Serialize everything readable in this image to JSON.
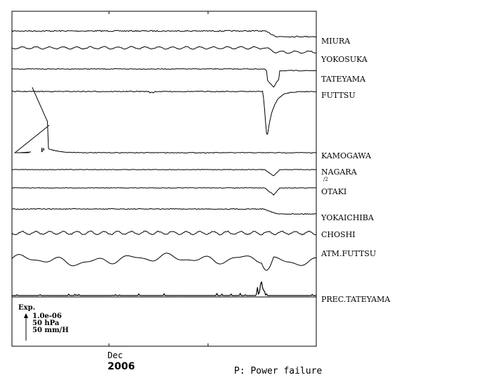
{
  "chart_data": {
    "type": "line",
    "title": "",
    "xlabel": "",
    "ylabel": "",
    "x_tick_labels": [
      {
        "month": "Dec",
        "year": "2006"
      }
    ],
    "series": [
      {
        "name": "MIURA",
        "kind": "drift",
        "step_at": 0.83,
        "step": 8,
        "jitter": 0.8
      },
      {
        "name": "YOKOSUKA",
        "kind": "wavy",
        "step_at": 0.83,
        "step": 6,
        "jitter": 1.6
      },
      {
        "name": "TATEYAMA",
        "kind": "dip",
        "step_at": 0.83,
        "dip": 14,
        "step": 12,
        "jitter": 0.5
      },
      {
        "name": "FUTTSU",
        "kind": "spike",
        "step_at": 0.83,
        "dip": 67,
        "jitter": 0.6
      },
      {
        "name": "KAMOGAWA",
        "kind": "recovery",
        "power_failure": true,
        "jitter": 0.5
      },
      {
        "name": "NAGARA",
        "sub_label": "/2",
        "kind": "dip",
        "step_at": 0.83,
        "dip": 9,
        "step": 0,
        "jitter": 0.4
      },
      {
        "name": "OTAKI",
        "kind": "dip",
        "step_at": 0.83,
        "dip": 10,
        "step": 0,
        "jitter": 0.4
      },
      {
        "name": "YOKAICHIBA",
        "kind": "drift",
        "step_at": 0.83,
        "step": 7,
        "jitter": 0.6
      },
      {
        "name": "CHOSHI",
        "kind": "wavy",
        "jitter": 2.2
      },
      {
        "name": "ATM.FUTTSU",
        "kind": "pressure"
      },
      {
        "name": "PREC.TATEYAMA",
        "kind": "precip"
      }
    ],
    "annotations": [
      {
        "text": "P",
        "meaning": "Power failure"
      }
    ],
    "scale_legend": {
      "title": "Exp.",
      "lines": [
        "1.0e-06",
        "50 hPa",
        "50 mm/H"
      ]
    },
    "footnote": "P: Power failure"
  }
}
